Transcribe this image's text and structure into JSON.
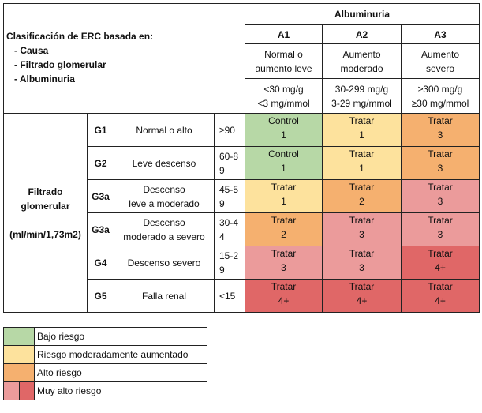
{
  "header": {
    "albuminuria": "Albuminuria",
    "intro_title": "Clasificación de ERC basada en:",
    "intro_items": [
      "- Causa",
      "- Filtrado glomerular",
      "- Albuminuria"
    ],
    "categories": [
      {
        "code": "A1",
        "desc1": "Normal o",
        "desc2": "aumento leve",
        "range1": "<30 mg/g",
        "range2": "<3 mg/mmol"
      },
      {
        "code": "A2",
        "desc1": "Aumento",
        "desc2": "moderado",
        "range1": "30-299 mg/g",
        "range2": "3-29 mg/mmol"
      },
      {
        "code": "A3",
        "desc1": "Aumento",
        "desc2": "severo",
        "range1": "≥300 mg/g",
        "range2": "≥30 mg/mmol"
      }
    ]
  },
  "side": {
    "line1": "Filtrado",
    "line2": "glomerular",
    "line3": "(ml/min/1,73m2)"
  },
  "rows": [
    {
      "grade": "G1",
      "desc1": "Normal o alto",
      "desc2": "",
      "gfr1": "≥90",
      "gfr2": "",
      "cells": [
        {
          "t": "Control",
          "n": "1",
          "c": "g"
        },
        {
          "t": "Tratar",
          "n": "1",
          "c": "y"
        },
        {
          "t": "Tratar",
          "n": "3",
          "c": "o"
        }
      ]
    },
    {
      "grade": "G2",
      "desc1": "Leve descenso",
      "desc2": "",
      "gfr1": "60-8",
      "gfr2": "9",
      "cells": [
        {
          "t": "Control",
          "n": "1",
          "c": "g"
        },
        {
          "t": "Tratar",
          "n": "1",
          "c": "y"
        },
        {
          "t": "Tratar",
          "n": "3",
          "c": "o"
        }
      ]
    },
    {
      "grade": "G3a",
      "desc1": "Descenso",
      "desc2": "leve a moderado",
      "gfr1": "45-5",
      "gfr2": "9",
      "cells": [
        {
          "t": "Tratar",
          "n": "1",
          "c": "y"
        },
        {
          "t": "Tratar",
          "n": "2",
          "c": "o"
        },
        {
          "t": "Tratar",
          "n": "3",
          "c": "p"
        }
      ]
    },
    {
      "grade": "G3a",
      "desc1": "Descenso",
      "desc2": "moderado a severo",
      "gfr1": "30-4",
      "gfr2": "4",
      "cells": [
        {
          "t": "Tratar",
          "n": "2",
          "c": "o"
        },
        {
          "t": "Tratar",
          "n": "3",
          "c": "p"
        },
        {
          "t": "Tratar",
          "n": "3",
          "c": "p"
        }
      ]
    },
    {
      "grade": "G4",
      "desc1": "Descenso severo",
      "desc2": "",
      "gfr1": "15-2",
      "gfr2": "9",
      "cells": [
        {
          "t": "Tratar",
          "n": "3",
          "c": "p"
        },
        {
          "t": "Tratar",
          "n": "3",
          "c": "p"
        },
        {
          "t": "Tratar",
          "n": "4+",
          "c": "r"
        }
      ]
    },
    {
      "grade": "G5",
      "desc1": "Falla renal",
      "desc2": "",
      "gfr1": "<15",
      "gfr2": "",
      "cells": [
        {
          "t": "Tratar",
          "n": "4+",
          "c": "r"
        },
        {
          "t": "Tratar",
          "n": "4+",
          "c": "r"
        },
        {
          "t": "Tratar",
          "n": "4+",
          "c": "r"
        }
      ]
    }
  ],
  "legend": [
    {
      "label": "Bajo riesgo",
      "color": "#b7d8a6"
    },
    {
      "label": "Riesgo moderadamente aumentado",
      "color": "#fde29d"
    },
    {
      "label": "Alto riesgo",
      "color": "#f5b06f"
    },
    {
      "label": "Muy alto riesgo",
      "color": "#eb9b9b",
      "color2": "#e06767"
    }
  ]
}
